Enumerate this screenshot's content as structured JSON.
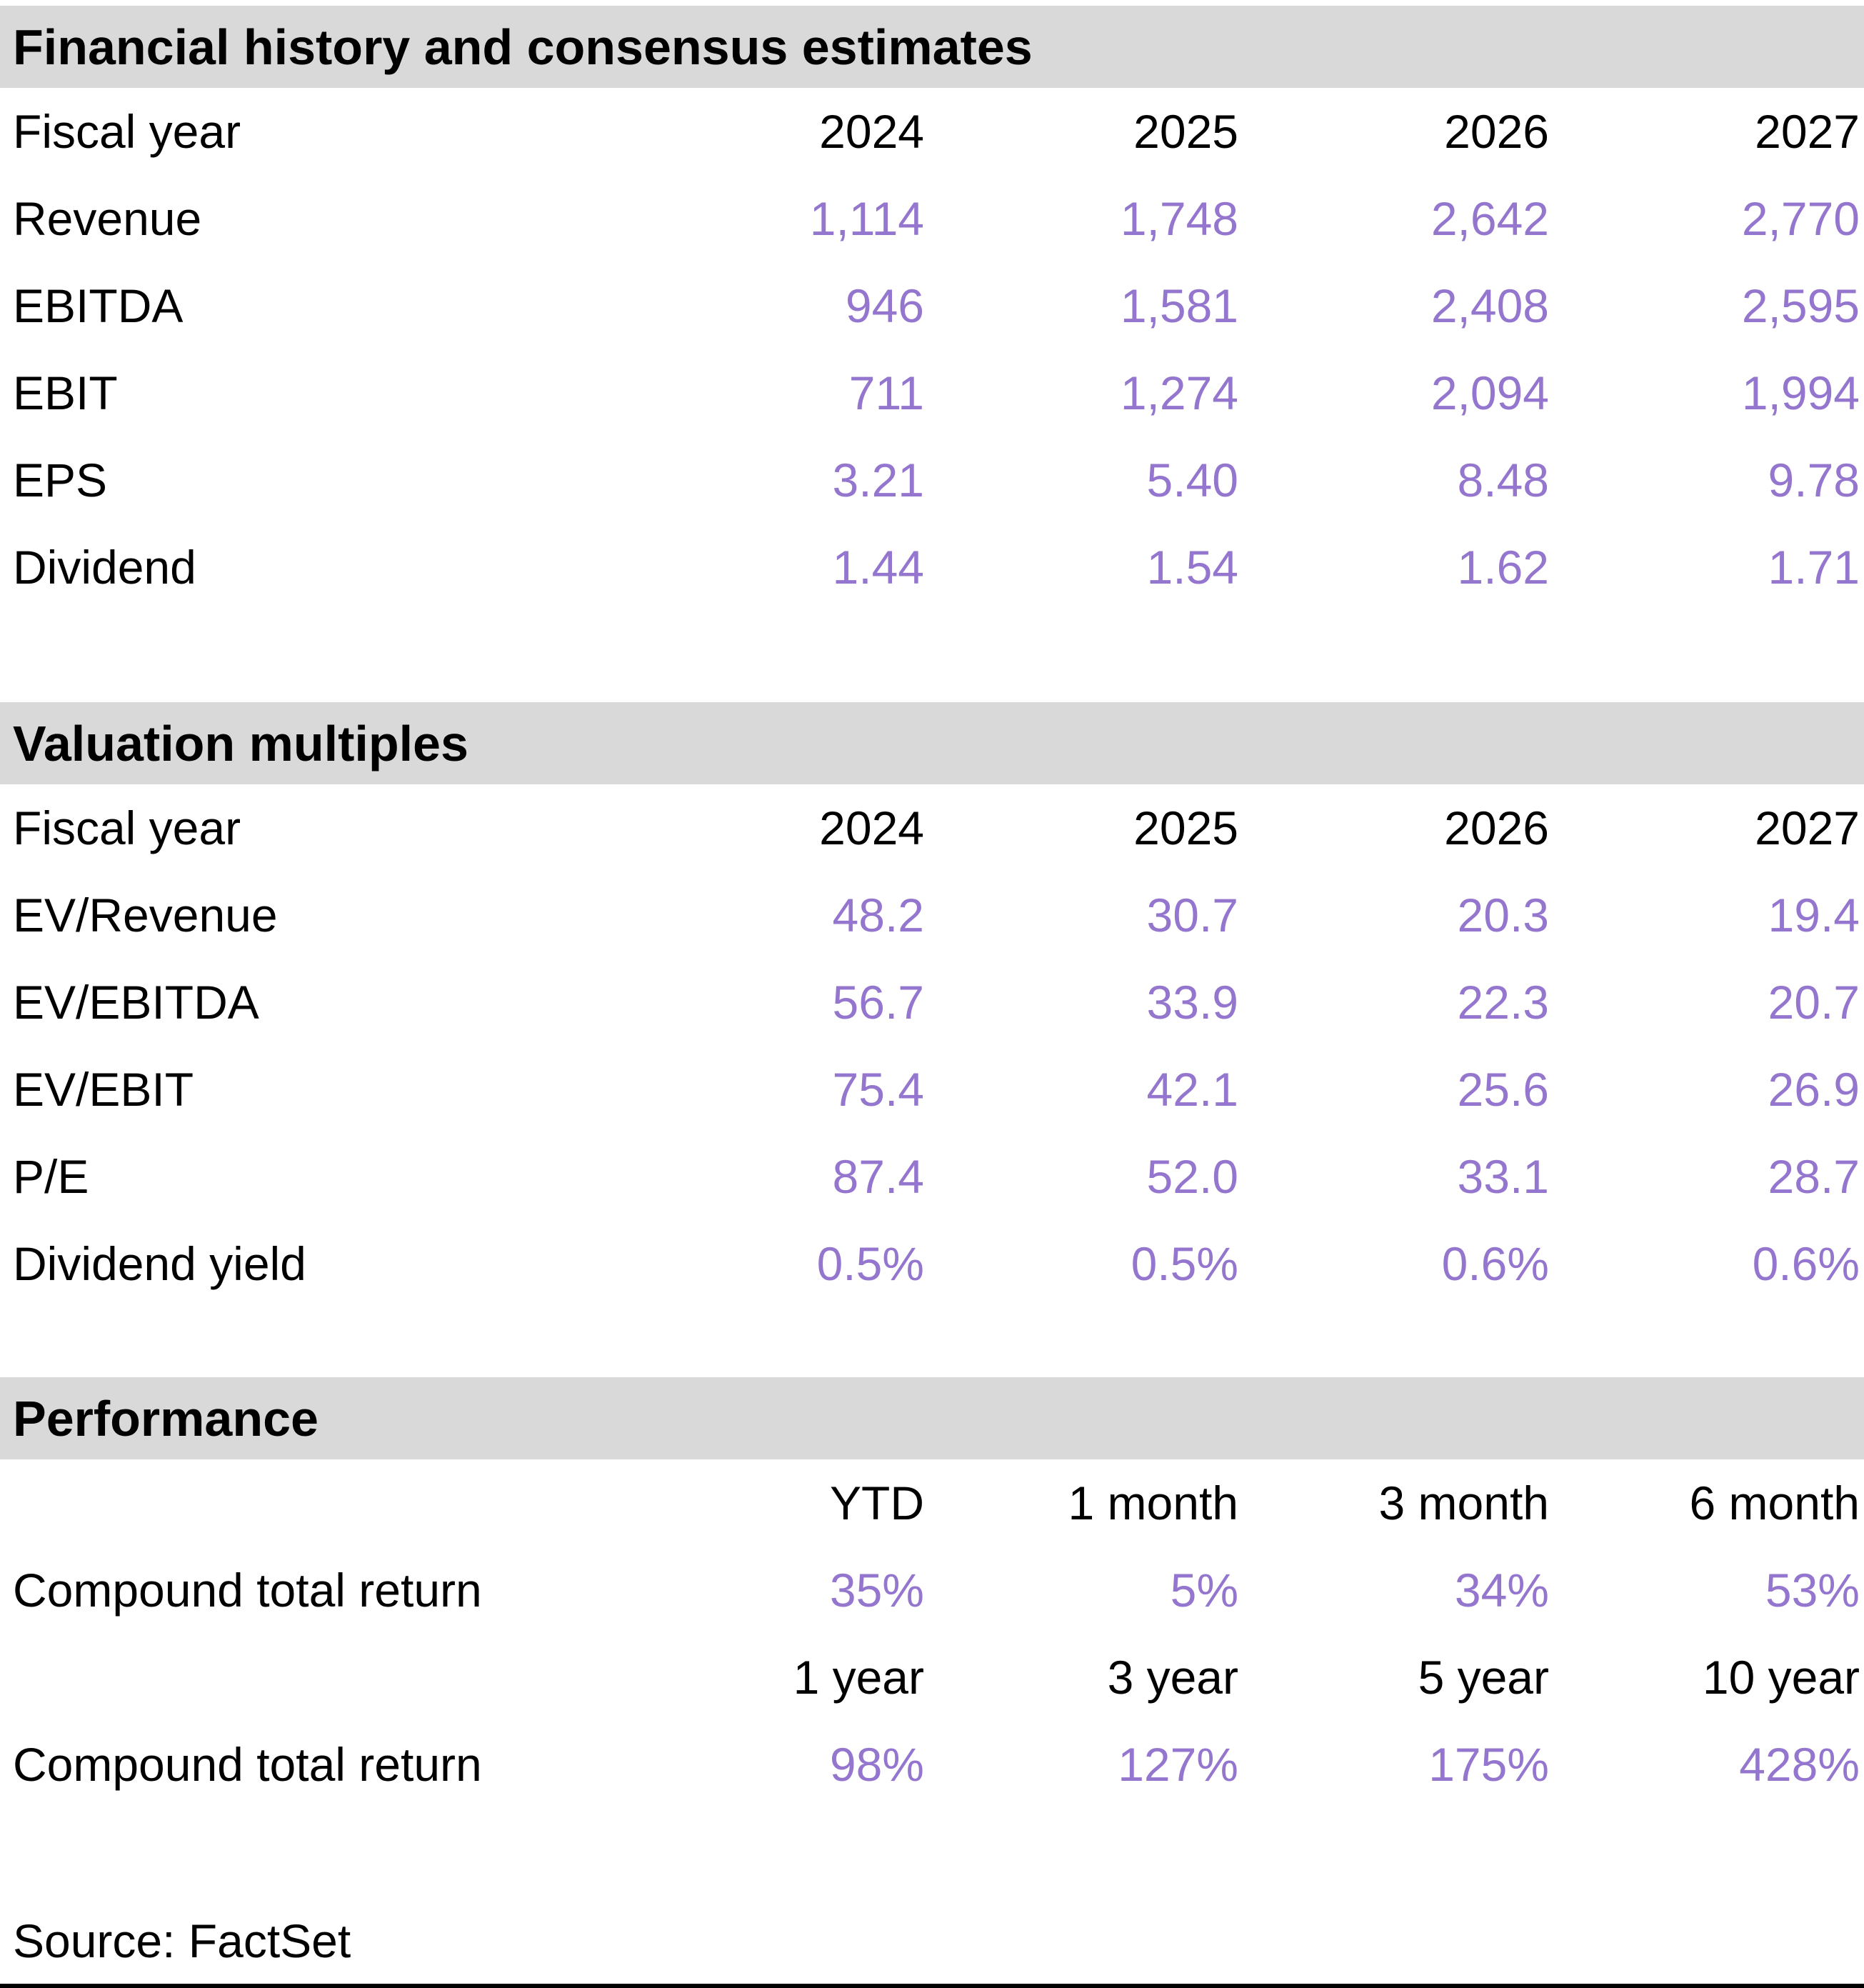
{
  "colors": {
    "accent": "#9476CE",
    "band_bg": "#D9D9D9",
    "rule": "#000000"
  },
  "sections": {
    "financial": {
      "title": "Financial history and consensus estimates",
      "header_label": "Fiscal year",
      "columns": [
        "2024",
        "2025",
        "2026",
        "2027"
      ],
      "rows": [
        {
          "label": "Revenue",
          "values": [
            "1,114",
            "1,748",
            "2,642",
            "2,770"
          ]
        },
        {
          "label": "EBITDA",
          "values": [
            "946",
            "1,581",
            "2,408",
            "2,595"
          ]
        },
        {
          "label": "EBIT",
          "values": [
            "711",
            "1,274",
            "2,094",
            "1,994"
          ]
        },
        {
          "label": "EPS",
          "values": [
            "3.21",
            "5.40",
            "8.48",
            "9.78"
          ]
        },
        {
          "label": "Dividend",
          "values": [
            "1.44",
            "1.54",
            "1.62",
            "1.71"
          ]
        }
      ]
    },
    "valuation": {
      "title": "Valuation multiples",
      "header_label": "Fiscal year",
      "columns": [
        "2024",
        "2025",
        "2026",
        "2027"
      ],
      "rows": [
        {
          "label": "EV/Revenue",
          "values": [
            "48.2",
            "30.7",
            "20.3",
            "19.4"
          ]
        },
        {
          "label": "EV/EBITDA",
          "values": [
            "56.7",
            "33.9",
            "22.3",
            "20.7"
          ]
        },
        {
          "label": "EV/EBIT",
          "values": [
            "75.4",
            "42.1",
            "25.6",
            "26.9"
          ]
        },
        {
          "label": "P/E",
          "values": [
            "87.4",
            "52.0",
            "33.1",
            "28.7"
          ]
        },
        {
          "label": "Dividend yield",
          "values": [
            "0.5%",
            "0.5%",
            "0.6%",
            "0.6%"
          ]
        }
      ]
    },
    "performance": {
      "title": "Performance",
      "groups": [
        {
          "columns": [
            "YTD",
            "1 month",
            "3 month",
            "6 month"
          ],
          "row": {
            "label": "Compound total return",
            "values": [
              "35%",
              "5%",
              "34%",
              "53%"
            ]
          }
        },
        {
          "columns": [
            "1 year",
            "3 year",
            "5 year",
            "10 year"
          ],
          "row": {
            "label": "Compound total return",
            "values": [
              "98%",
              "127%",
              "175%",
              "428%"
            ]
          }
        }
      ]
    }
  },
  "footer": {
    "source": "Source: FactSet"
  }
}
